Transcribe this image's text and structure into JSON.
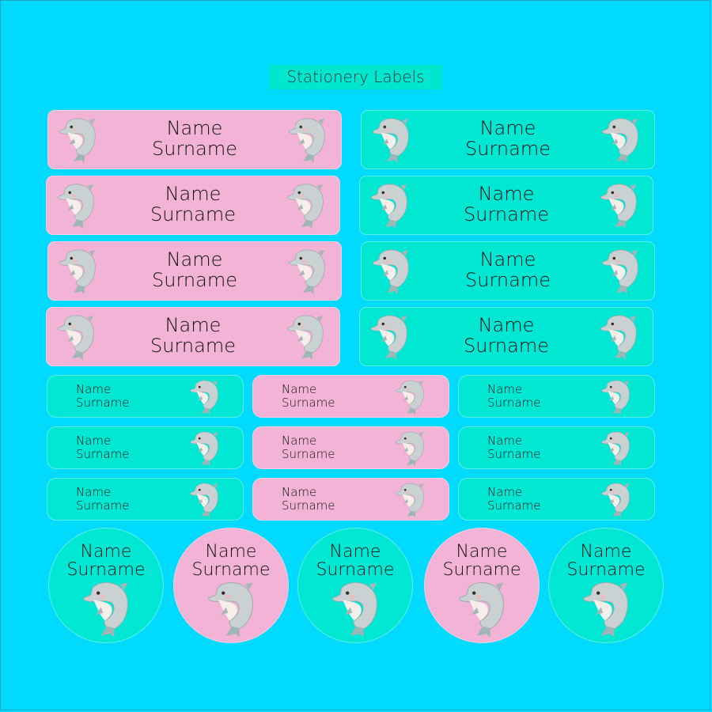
{
  "title": "Stationery Labels",
  "colors": {
    "background": "#00daff",
    "pink": "#f2b3d6",
    "teal": "#00e8d4",
    "title_bg": "#00e6cf"
  },
  "label_text": {
    "name": "Name",
    "surname": "Surname"
  },
  "icon": "dolphin-icon",
  "large_labels": [
    {
      "color": "pink"
    },
    {
      "color": "teal"
    },
    {
      "color": "pink"
    },
    {
      "color": "teal"
    },
    {
      "color": "pink"
    },
    {
      "color": "teal"
    },
    {
      "color": "pink"
    },
    {
      "color": "teal"
    }
  ],
  "small_labels": [
    {
      "color": "teal"
    },
    {
      "color": "pink"
    },
    {
      "color": "teal"
    },
    {
      "color": "teal"
    },
    {
      "color": "pink"
    },
    {
      "color": "teal"
    },
    {
      "color": "teal"
    },
    {
      "color": "pink"
    },
    {
      "color": "teal"
    }
  ],
  "round_labels": [
    {
      "color": "teal"
    },
    {
      "color": "pink"
    },
    {
      "color": "teal"
    },
    {
      "color": "pink"
    },
    {
      "color": "teal"
    }
  ]
}
